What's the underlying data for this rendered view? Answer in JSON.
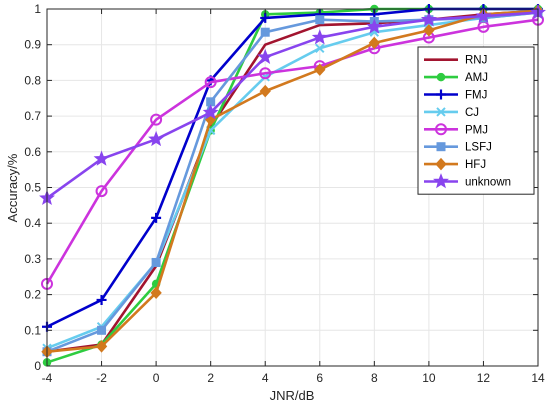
{
  "chart_data": {
    "type": "line",
    "title": "",
    "xlabel": "JNR/dB",
    "ylabel": "Accuracy/%",
    "x": [
      -4,
      -2,
      0,
      2,
      4,
      6,
      8,
      10,
      12,
      14
    ],
    "xlim": [
      -4,
      14
    ],
    "ylim": [
      0,
      1
    ],
    "xticks": [
      "-4",
      "-2",
      "0",
      "2",
      "4",
      "6",
      "8",
      "10",
      "12",
      "14"
    ],
    "yticks": [
      "0",
      "0.1",
      "0.2",
      "0.3",
      "0.4",
      "0.5",
      "0.6",
      "0.7",
      "0.8",
      "0.9",
      "1"
    ],
    "grid": true,
    "legend_position": "top-right",
    "series": [
      {
        "name": "RNJ",
        "color": "#A2142F",
        "marker": "none",
        "values": [
          0.04,
          0.06,
          0.28,
          0.67,
          0.9,
          0.955,
          0.96,
          0.97,
          0.985,
          0.995
        ]
      },
      {
        "name": "AMJ",
        "color": "#2ECC40",
        "marker": "circle-filled",
        "values": [
          0.01,
          0.06,
          0.23,
          0.66,
          0.985,
          0.99,
          1.0,
          1.0,
          1.0,
          1.0
        ]
      },
      {
        "name": "FMJ",
        "color": "#0000CC",
        "marker": "plus",
        "values": [
          0.11,
          0.185,
          0.415,
          0.8,
          0.975,
          0.985,
          0.985,
          1.0,
          1.0,
          1.0
        ]
      },
      {
        "name": "CJ",
        "color": "#66CCEE",
        "marker": "x",
        "values": [
          0.05,
          0.11,
          0.29,
          0.66,
          0.81,
          0.89,
          0.935,
          0.955,
          0.975,
          0.99
        ]
      },
      {
        "name": "PMJ",
        "color": "#CC33DD",
        "marker": "circle-open",
        "values": [
          0.23,
          0.49,
          0.69,
          0.795,
          0.82,
          0.84,
          0.89,
          0.92,
          0.95,
          0.97
        ]
      },
      {
        "name": "LSFJ",
        "color": "#6699DD",
        "marker": "square",
        "values": [
          0.04,
          0.1,
          0.29,
          0.74,
          0.935,
          0.97,
          0.965,
          0.97,
          0.975,
          0.99
        ]
      },
      {
        "name": "HFJ",
        "color": "#D2791E",
        "marker": "diamond",
        "values": [
          0.04,
          0.055,
          0.205,
          0.69,
          0.77,
          0.83,
          0.905,
          0.94,
          0.985,
          0.995
        ]
      },
      {
        "name": "unknown",
        "color": "#8844EE",
        "marker": "star",
        "values": [
          0.47,
          0.58,
          0.635,
          0.71,
          0.865,
          0.92,
          0.95,
          0.97,
          0.98,
          0.99
        ]
      }
    ]
  }
}
